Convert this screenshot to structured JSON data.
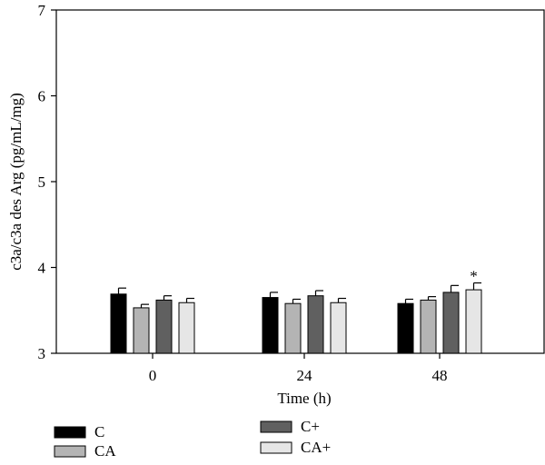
{
  "chart_data": {
    "type": "bar",
    "categories": [
      "0",
      "24",
      "48"
    ],
    "xlabel": "Time (h)",
    "ylabel": "c3a/c3a des Arg (pg/mL/mg)",
    "ylim": [
      3,
      7
    ],
    "yticks": [
      "3",
      "4",
      "5",
      "6",
      "7"
    ],
    "grid": false,
    "legend_placement": "bottom-left",
    "series": [
      {
        "name": "C",
        "color": "#000000",
        "values": [
          3.69,
          3.65,
          3.58
        ],
        "errors": [
          0.07,
          0.06,
          0.05
        ]
      },
      {
        "name": "CA",
        "color": "#b4b4b4",
        "values": [
          3.53,
          3.58,
          3.62
        ],
        "errors": [
          0.04,
          0.05,
          0.04
        ]
      },
      {
        "name": "C+",
        "color": "#606060",
        "values": [
          3.62,
          3.67,
          3.71
        ],
        "errors": [
          0.05,
          0.06,
          0.08
        ]
      },
      {
        "name": "CA+",
        "color": "#e6e6e6",
        "values": [
          3.59,
          3.59,
          3.74
        ],
        "errors": [
          0.05,
          0.05,
          0.08
        ]
      }
    ],
    "annotations": [
      {
        "text": "*",
        "category": "48",
        "series": "CA+"
      }
    ]
  }
}
